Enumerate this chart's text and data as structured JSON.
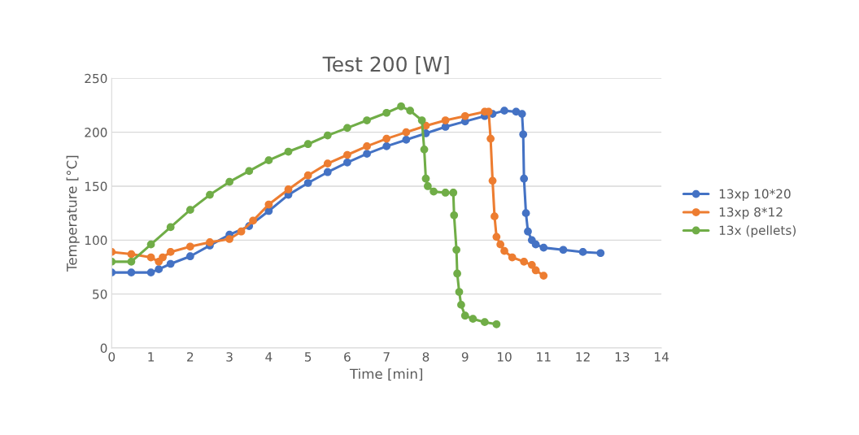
{
  "chart_data": {
    "type": "line",
    "title": "Test 200 [W]",
    "xlabel": "Time [min]",
    "ylabel": "Temperature [°C]",
    "xlim": [
      0,
      14
    ],
    "xticks": [
      0,
      1,
      2,
      3,
      4,
      5,
      6,
      7,
      8,
      9,
      10,
      11,
      12,
      13,
      14
    ],
    "ylim": [
      0,
      250
    ],
    "yticks": [
      0,
      50,
      100,
      150,
      200,
      250
    ],
    "grid": "y",
    "legend": "right",
    "marker": "circle",
    "line_style": "solid",
    "series": [
      {
        "name": "13xp 10*20",
        "color": "#4472c4",
        "x": [
          0,
          0.5,
          1,
          1.2,
          1.5,
          2,
          2.5,
          3,
          3.5,
          4,
          4.5,
          5,
          5.5,
          6,
          6.5,
          7,
          7.5,
          8,
          8.5,
          9,
          9.5,
          9.7,
          10,
          10.3,
          10.45,
          10.48,
          10.5,
          10.55,
          10.6,
          10.7,
          10.8,
          11,
          11.5,
          12,
          12.45
        ],
        "values": [
          70,
          70,
          70,
          73,
          78,
          85,
          95,
          105,
          113,
          127,
          142,
          153,
          163,
          172,
          180,
          187,
          193,
          199,
          205,
          210,
          215,
          217,
          220,
          219,
          217,
          198,
          157,
          125,
          108,
          100,
          96,
          93,
          91,
          89,
          88
        ]
      },
      {
        "name": "13xp 8*12",
        "color": "#ed7d31",
        "x": [
          0,
          0.5,
          1,
          1.2,
          1.3,
          1.5,
          2,
          2.5,
          3,
          3.3,
          3.6,
          4,
          4.5,
          5,
          5.5,
          6,
          6.5,
          7,
          7.5,
          8,
          8.5,
          9,
          9.5,
          9.6,
          9.65,
          9.7,
          9.75,
          9.8,
          9.9,
          10,
          10.2,
          10.5,
          10.7,
          10.8,
          11
        ],
        "values": [
          89,
          87,
          84,
          80,
          84,
          89,
          94,
          98,
          101,
          108,
          118,
          133,
          147,
          160,
          171,
          179,
          187,
          194,
          200,
          206,
          211,
          215,
          219,
          219,
          194,
          155,
          122,
          103,
          96,
          90,
          84,
          80,
          77,
          72,
          67
        ]
      },
      {
        "name": "13x (pellets)",
        "color": "#70ad47",
        "x": [
          0,
          0.5,
          1,
          1.5,
          2,
          2.5,
          3,
          3.5,
          4,
          4.5,
          5,
          5.5,
          6,
          6.5,
          7,
          7.37,
          7.6,
          7.9,
          7.96,
          8.0,
          8.05,
          8.2,
          8.5,
          8.7,
          8.72,
          8.78,
          8.8,
          8.85,
          8.9,
          9.0,
          9.2,
          9.5,
          9.8
        ],
        "values": [
          80,
          80,
          96,
          112,
          128,
          142,
          154,
          164,
          174,
          182,
          189,
          197,
          204,
          211,
          218,
          224,
          220,
          211,
          184,
          157,
          150,
          145,
          144,
          144,
          123,
          91,
          69,
          52,
          40,
          30,
          27,
          24,
          22
        ]
      }
    ]
  }
}
